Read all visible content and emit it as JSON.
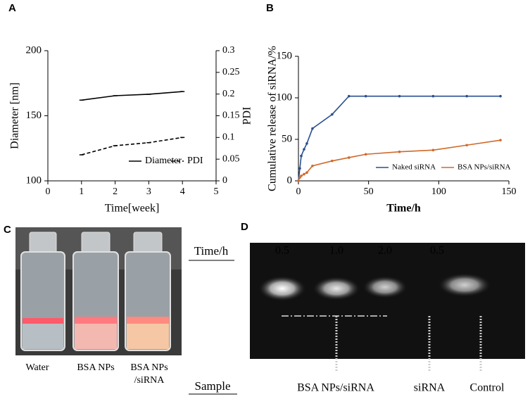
{
  "panel_labels": [
    "A",
    "B",
    "C",
    "D"
  ],
  "chart_data": [
    {
      "type": "line",
      "x": [
        1,
        2,
        3,
        4
      ],
      "xlim": [
        0,
        5
      ],
      "xticks": [
        0,
        1,
        2,
        3,
        4,
        5
      ],
      "ylim": [
        100,
        200
      ],
      "yticks": [
        100,
        150,
        200
      ],
      "y2lim": [
        0,
        0.3
      ],
      "y2ticks": [
        0,
        0.05,
        0.1,
        0.15,
        0.2,
        0.25,
        0.3
      ],
      "xlabel": "Time[week]",
      "ylabel": "Diameter [nm]",
      "y2label": "PDI",
      "series": [
        {
          "name": "Diameter",
          "color": "#000000",
          "line_style": "solid",
          "values": [
            162,
            165.4,
            166.5,
            168.6
          ]
        },
        {
          "name": "PDI",
          "color": "#000000",
          "line_style": "dashed",
          "axis": "y2",
          "values": [
            0.06,
            0.081,
            0.088,
            0.1
          ]
        }
      ]
    },
    {
      "type": "line",
      "x": [
        0,
        1,
        2,
        4,
        6,
        10,
        24,
        36,
        48,
        72,
        96,
        120,
        144
      ],
      "xlim": [
        0,
        150
      ],
      "xticks": [
        0,
        50,
        100,
        150
      ],
      "ylim": [
        0,
        150
      ],
      "yticks": [
        0,
        50,
        100,
        150
      ],
      "xlabel": "Time/h",
      "ylabel": "Cumulative release of siRNA/%",
      "series": [
        {
          "name": "Naked siRNA",
          "color": "#2a4f8f",
          "line_style": "solid",
          "values": [
            0,
            15,
            30,
            38,
            45,
            63,
            80,
            102,
            102,
            102,
            102,
            102,
            102
          ]
        },
        {
          "name": "BSA NPs/siRNA",
          "color": "#d0692a",
          "line_style": "solid",
          "values": [
            0,
            4,
            6,
            8,
            10,
            18,
            24,
            28,
            32,
            35,
            37,
            43,
            49
          ]
        }
      ]
    }
  ],
  "vial_labels": [
    [
      "Water"
    ],
    [
      "BSA NPs"
    ],
    [
      "BSA NPs",
      "/siRNA"
    ]
  ],
  "gel": {
    "row_title": "Time/h",
    "times": [
      "0.5",
      "1.0",
      "2.0",
      "0.5"
    ],
    "sample_title": "Sample",
    "samples": [
      "BSA NPs/siRNA",
      "siRNA",
      "Control"
    ]
  }
}
